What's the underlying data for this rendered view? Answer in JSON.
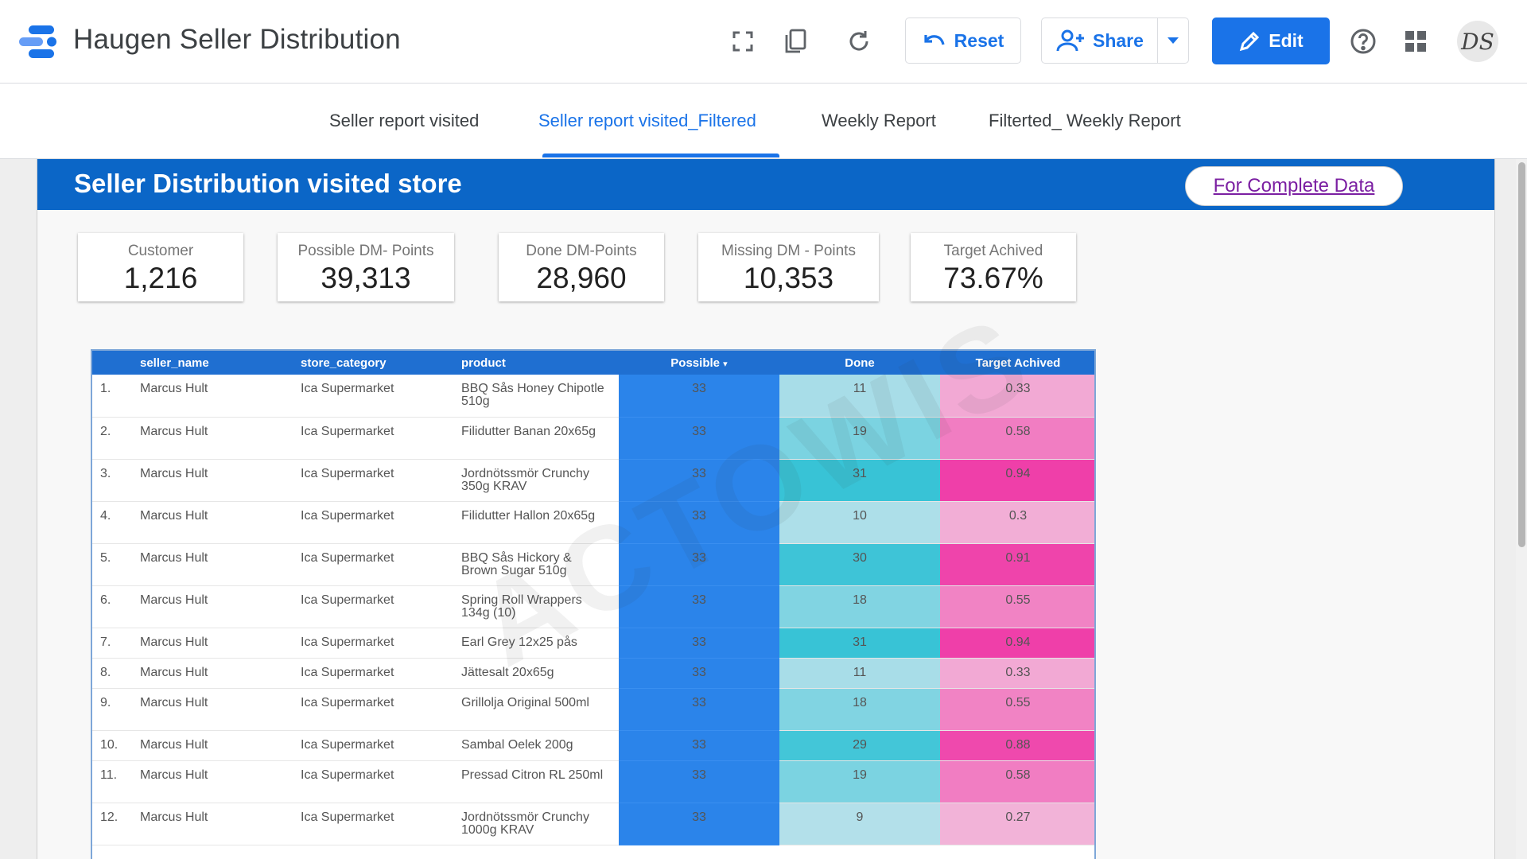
{
  "header": {
    "title": "Haugen Seller Distribution",
    "reset_label": "Reset",
    "share_label": "Share",
    "edit_label": "Edit",
    "avatar_initials": "DS"
  },
  "tabs": [
    {
      "label": "Seller report visited",
      "active": false
    },
    {
      "label": "Seller report visited_Filtered",
      "active": true
    },
    {
      "label": "Weekly Report",
      "active": false
    },
    {
      "label": "Filterted_ Weekly Report",
      "active": false
    }
  ],
  "banner": {
    "title": "Seller Distribution visited store",
    "link_label": "For Complete Data"
  },
  "scorecards": [
    {
      "label": "Customer",
      "value": "1,216"
    },
    {
      "label": "Possible DM- Points",
      "value": "39,313"
    },
    {
      "label": "Done DM-Points",
      "value": "28,960"
    },
    {
      "label": "Missing DM - Points",
      "value": "10,353"
    },
    {
      "label": "Target Achived",
      "value": "73.67%"
    }
  ],
  "watermark": "ACTOWIS",
  "table": {
    "columns": [
      "seller_name",
      "store_category",
      "product",
      "Possible",
      "Done",
      "Target Achived"
    ],
    "sort_indicator": "▾",
    "rows": [
      {
        "n": "1.",
        "seller": "Marcus Hult",
        "category": "Ica Supermarket",
        "product": "BBQ Sås Honey Chipotle 510g",
        "possible": "33",
        "done": "11",
        "target": "0.33"
      },
      {
        "n": "2.",
        "seller": "Marcus Hult",
        "category": "Ica Supermarket",
        "product": "Filidutter Banan 20x65g",
        "possible": "33",
        "done": "19",
        "target": "0.58"
      },
      {
        "n": "3.",
        "seller": "Marcus Hult",
        "category": "Ica Supermarket",
        "product": "Jordnötssmör Crunchy 350g KRAV",
        "possible": "33",
        "done": "31",
        "target": "0.94"
      },
      {
        "n": "4.",
        "seller": "Marcus Hult",
        "category": "Ica Supermarket",
        "product": "Filidutter Hallon 20x65g",
        "possible": "33",
        "done": "10",
        "target": "0.3"
      },
      {
        "n": "5.",
        "seller": "Marcus Hult",
        "category": "Ica Supermarket",
        "product": "BBQ Sås Hickory & Brown Sugar 510g",
        "possible": "33",
        "done": "30",
        "target": "0.91"
      },
      {
        "n": "6.",
        "seller": "Marcus Hult",
        "category": "Ica Supermarket",
        "product": "Spring Roll Wrappers 134g (10)",
        "possible": "33",
        "done": "18",
        "target": "0.55"
      },
      {
        "n": "7.",
        "seller": "Marcus Hult",
        "category": "Ica Supermarket",
        "product": "Earl Grey 12x25 pås",
        "possible": "33",
        "done": "31",
        "target": "0.94"
      },
      {
        "n": "8.",
        "seller": "Marcus Hult",
        "category": "Ica Supermarket",
        "product": "Jättesalt 20x65g",
        "possible": "33",
        "done": "11",
        "target": "0.33"
      },
      {
        "n": "9.",
        "seller": "Marcus Hult",
        "category": "Ica Supermarket",
        "product": "Grillolja Original 500ml",
        "possible": "33",
        "done": "18",
        "target": "0.55"
      },
      {
        "n": "10.",
        "seller": "Marcus Hult",
        "category": "Ica Supermarket",
        "product": "Sambal Oelek 200g",
        "possible": "33",
        "done": "29",
        "target": "0.88"
      },
      {
        "n": "11.",
        "seller": "Marcus Hult",
        "category": "Ica Supermarket",
        "product": "Pressad Citron RL 250ml",
        "possible": "33",
        "done": "19",
        "target": "0.58"
      },
      {
        "n": "12.",
        "seller": "Marcus Hult",
        "category": "Ica Supermarket",
        "product": "Jordnötssmör Crunchy 1000g KRAV",
        "possible": "33",
        "done": "9",
        "target": "0.27"
      }
    ]
  },
  "colors": {
    "accent": "#1a73e8",
    "banner": "#0b66c7",
    "possible_cell": "#2b84ea",
    "done_low": "#b3e0ea",
    "done_high": "#38c3d6",
    "target_low": "#f2b3d8",
    "target_high": "#ef3fa9"
  }
}
